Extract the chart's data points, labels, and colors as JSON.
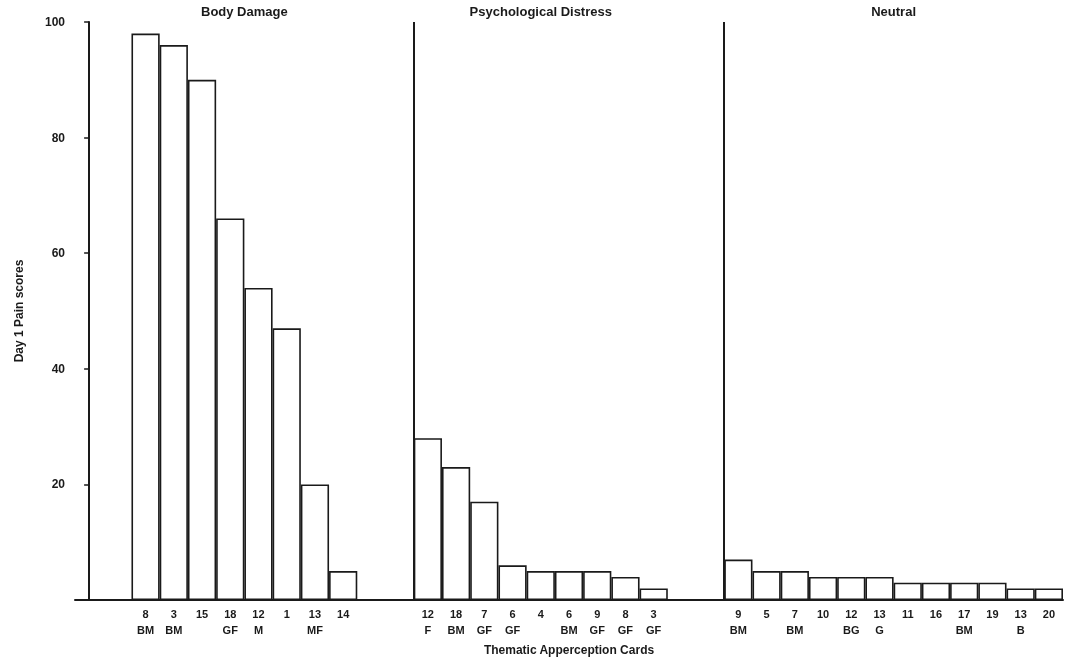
{
  "chart_data": {
    "type": "bar",
    "xlabel": "Thematic Apperception Cards",
    "ylabel": "Day 1 Pain scores",
    "categories": [
      null,
      null,
      "8\nBM",
      "3\nBM",
      "15",
      "18\nGF",
      "12\nM",
      "1",
      "13\nMF",
      "14",
      null,
      null,
      "12\nF",
      "18\nBM",
      "7\nGF",
      "6\nGF",
      "4",
      "6\nBM",
      "9\nGF",
      "8\nGF",
      "3\nGF",
      null,
      null,
      "9\nBM",
      "5",
      "7\nBM",
      "10",
      "12\nBG",
      "13\nG",
      "11",
      "16",
      "17\nBM",
      "19",
      "13\nB",
      "20"
    ],
    "values": [
      null,
      null,
      98,
      96,
      90,
      66,
      54,
      47,
      20,
      5,
      null,
      null,
      28,
      23,
      17,
      6,
      5,
      5,
      5,
      4,
      2,
      null,
      null,
      7,
      5,
      5,
      4,
      4,
      4,
      3,
      3,
      3,
      3,
      2,
      2
    ],
    "color": "#ffffff",
    "ylim": [
      0,
      100
    ],
    "yticks": [
      20,
      40,
      60,
      80,
      100
    ],
    "grid": false,
    "annotations": [
      "Body Damage",
      "Psychological Distress",
      "Neutral"
    ]
  }
}
